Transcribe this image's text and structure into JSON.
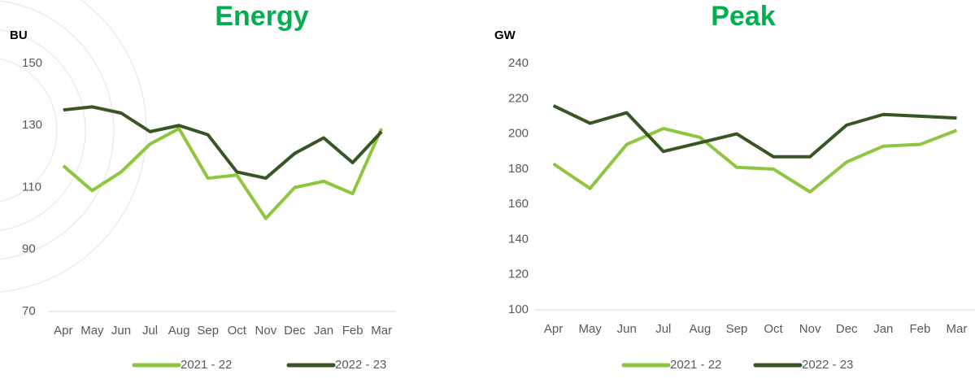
{
  "chart_data": [
    {
      "type": "line",
      "title": "Energy",
      "y_label": "BU",
      "categories": [
        "Apr",
        "May",
        "Jun",
        "Jul",
        "Aug",
        "Sep",
        "Oct",
        "Nov",
        "Dec",
        "Jan",
        "Feb",
        "Mar"
      ],
      "series": [
        {
          "name": "2021 - 22",
          "color": "#8dc63f",
          "values": [
            117,
            109,
            115,
            124,
            129,
            113,
            114,
            100,
            110,
            112,
            108,
            129
          ]
        },
        {
          "name": "2022 - 23",
          "color": "#375623",
          "values": [
            135,
            136,
            134,
            128,
            130,
            127,
            115,
            113,
            121,
            126,
            118,
            128
          ]
        }
      ],
      "ylim": [
        70,
        150
      ],
      "yticks": [
        70,
        90,
        110,
        130,
        150
      ]
    },
    {
      "type": "line",
      "title": "Peak",
      "y_label": "GW",
      "categories": [
        "Apr",
        "May",
        "Jun",
        "Jul",
        "Aug",
        "Sep",
        "Oct",
        "Nov",
        "Dec",
        "Jan",
        "Feb",
        "Mar"
      ],
      "series": [
        {
          "name": "2021 - 22",
          "color": "#8dc63f",
          "values": [
            183,
            169,
            194,
            203,
            198,
            181,
            180,
            167,
            184,
            193,
            194,
            202
          ]
        },
        {
          "name": "2022 - 23",
          "color": "#375623",
          "values": [
            216,
            206,
            212,
            190,
            195,
            200,
            187,
            187,
            205,
            211,
            210,
            209
          ]
        }
      ],
      "ylim": [
        100,
        240
      ],
      "yticks": [
        100,
        120,
        140,
        160,
        180,
        200,
        220,
        240
      ]
    }
  ]
}
